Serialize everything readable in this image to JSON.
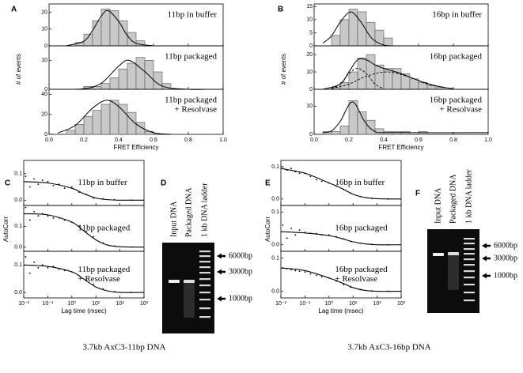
{
  "chart_data": [
    {
      "type": "histogram",
      "label": "A",
      "x_label": "FRET Efficiency",
      "y_label": "# of events",
      "xlim": [
        0,
        1
      ],
      "xticks": [
        {
          "value": 0,
          "label": "0.0"
        },
        0.2,
        0.4,
        0.6,
        0.8,
        {
          "value": 1,
          "label": "1.0"
        }
      ],
      "subplots": [
        {
          "text": [
            "11bp in buffer"
          ],
          "ylim": [
            0,
            25
          ],
          "yticks": [
            0,
            10,
            20
          ],
          "bins": [
            0.15,
            0.2,
            0.25,
            0.3,
            0.35,
            0.4,
            0.45,
            0.5,
            0.55
          ],
          "counts": [
            2,
            7,
            15,
            22,
            21,
            15,
            8,
            3
          ],
          "fits": [
            {
              "x": [
                0.1,
                0.2,
                0.25,
                0.3,
                0.34,
                0.4,
                0.45,
                0.5,
                0.6
              ],
              "y": [
                0.06,
                2.8,
                9.2,
                17.8,
                21,
                14.6,
                6.1,
                1.5,
                0
              ]
            }
          ]
        },
        {
          "text": [
            "11bp packaged"
          ],
          "ylim": [
            0,
            15
          ],
          "yticks": [
            0,
            10
          ],
          "bins": [
            0.2,
            0.25,
            0.3,
            0.35,
            0.4,
            0.45,
            0.5,
            0.55,
            0.6,
            0.65,
            0.7
          ],
          "counts": [
            1,
            1,
            2,
            4,
            7,
            9,
            11,
            10,
            6,
            2
          ],
          "fits": [
            {
              "x": [
                0.05,
                0.2,
                0.3,
                0.4,
                0.46,
                0.55,
                0.65,
                0.8,
                0.9
              ],
              "y": [
                0,
                0.2,
                2.1,
                8,
                10,
                6.1,
                1.1,
                0,
                0
              ]
            }
          ]
        },
        {
          "text": [
            "11bp packaged",
            "+ Resolvase"
          ],
          "ylim": [
            0,
            45
          ],
          "yticks": [
            0,
            20,
            40
          ],
          "bins": [
            0.1,
            0.15,
            0.2,
            0.25,
            0.3,
            0.35,
            0.4,
            0.45,
            0.5,
            0.55,
            0.6
          ],
          "counts": [
            4,
            10,
            18,
            24,
            30,
            34,
            30,
            22,
            12,
            3
          ],
          "fits": [
            {
              "x": [
                0.05,
                0.15,
                0.25,
                0.33,
                0.4,
                0.5,
                0.6,
                0.7
              ],
              "y": [
                1.3,
                8.9,
                26.2,
                34,
                27.8,
                10.3,
                1.7,
                0.1
              ]
            }
          ]
        }
      ]
    },
    {
      "type": "histogram",
      "label": "B",
      "x_label": "FRET Efficiency",
      "y_label": "# of events",
      "xlim": [
        0,
        1
      ],
      "xticks": [
        {
          "value": 0,
          "label": "0.0"
        },
        0.2,
        0.4,
        0.6,
        0.8,
        {
          "value": 1,
          "label": "1.0"
        }
      ],
      "subplots": [
        {
          "text": [
            "16bp in buffer"
          ],
          "ylim": [
            0,
            16
          ],
          "yticks": [
            0,
            5,
            10,
            15
          ],
          "bins": [
            0.1,
            0.15,
            0.2,
            0.25,
            0.3,
            0.35,
            0.4,
            0.45
          ],
          "counts": [
            4,
            10,
            14,
            13,
            9,
            6,
            3
          ],
          "fits": [
            {
              "x": [
                0.05,
                0.1,
                0.15,
                0.21,
                0.27,
                0.33,
                0.4,
                0.5
              ],
              "y": [
                1,
                3.8,
                9,
                13,
                9,
                3,
                0.3,
                0
              ]
            }
          ]
        },
        {
          "text": [
            "16bp packaged"
          ],
          "ylim": [
            0,
            25
          ],
          "yticks": [
            0,
            10,
            20
          ],
          "bins": [
            0.1,
            0.15,
            0.2,
            0.25,
            0.3,
            0.35,
            0.4,
            0.45,
            0.5,
            0.55,
            0.6,
            0.65,
            0.7,
            0.75
          ],
          "counts": [
            1,
            4,
            10,
            18,
            20,
            14,
            12,
            12,
            9,
            6,
            4,
            2,
            1
          ],
          "fits": [
            {
              "x": [
                0.05,
                0.15,
                0.2,
                0.25,
                0.3,
                0.35,
                0.4,
                0.5,
                0.6,
                0.7,
                0.8
              ],
              "y": [
                0,
                3,
                10,
                17,
                17,
                14,
                12,
                9,
                5,
                2,
                0.3
              ]
            },
            {
              "x": [
                0.1,
                0.15,
                0.2,
                0.25,
                0.3,
                0.35,
                0.4
              ],
              "y": [
                0.3,
                3,
                9,
                12,
                9,
                3,
                0.3
              ],
              "dashed": true
            },
            {
              "x": [
                0.1,
                0.2,
                0.3,
                0.42,
                0.55,
                0.65,
                0.75
              ],
              "y": [
                0.5,
                3,
                7.5,
                10,
                7,
                3,
                1
              ],
              "dashed": true
            }
          ]
        },
        {
          "text": [
            "16bp packaged",
            "+ Resolvase"
          ],
          "ylim": [
            0,
            16
          ],
          "yticks": [
            0,
            10
          ],
          "bins": [
            0.05,
            0.1,
            0.15,
            0.2,
            0.25,
            0.3,
            0.35,
            0.4,
            0.45,
            0.5,
            0.55,
            0.6,
            0.65,
            0.7
          ],
          "counts": [
            1,
            1,
            3,
            12,
            8,
            5,
            2,
            1,
            1,
            1,
            0,
            1,
            0
          ],
          "fits": [
            {
              "x": [
                0.05,
                0.1,
                0.15,
                0.22,
                0.29,
                0.35,
                0.45,
                1
              ],
              "y": [
                0.6,
                1.2,
                4.6,
                11.5,
                4.6,
                1,
                0.6,
                0.6
              ]
            }
          ]
        }
      ]
    },
    {
      "type": "scatter",
      "label": "C",
      "x_label": "Lag time (msec)",
      "y_label": "AutoCorr",
      "log_x": true,
      "xlim": [
        0.01,
        1000
      ],
      "xticks": [
        {
          "value": 0.01,
          "label": "10⁻²"
        },
        {
          "value": 0.1,
          "label": "10⁻¹"
        },
        {
          "value": 1,
          "label": "10⁰"
        },
        {
          "value": 10,
          "label": "10¹"
        },
        {
          "value": 100,
          "label": "10²"
        },
        {
          "value": 1000,
          "label": "10³"
        }
      ],
      "scatter_x": [
        0.012,
        0.018,
        0.027,
        0.04,
        0.06,
        0.1,
        0.17,
        0.3,
        0.5,
        1,
        2,
        4,
        8,
        20,
        60,
        300
      ],
      "fit_x": [
        0.01,
        0.1,
        1,
        3,
        10,
        30,
        100,
        1000
      ],
      "subplots": [
        {
          "text": [
            "11bp in buffer"
          ],
          "ylim": [
            -0.02,
            0.15
          ],
          "yticks": [
            {
              "value": 0,
              "label": "0.0"
            },
            0.1
          ],
          "scatter_y": [
            0.09,
            0.05,
            0.08,
            0.06,
            0.075,
            0.07,
            0.055,
            0.06,
            0.045,
            0.05,
            0.03,
            0.022,
            0.008,
            0.005,
            0.002,
            0
          ],
          "fit_y": [
            0.07,
            0.065,
            0.045,
            0.025,
            0.008,
            0.002,
            0,
            0
          ]
        },
        {
          "text": [
            "11bp packaged"
          ],
          "ylim": [
            -0.02,
            0.2
          ],
          "yticks": [
            {
              "value": 0,
              "label": "0.0"
            },
            0.1
          ],
          "scatter_y": [
            0.19,
            0.13,
            0.17,
            0.15,
            0.16,
            0.15,
            0.14,
            0.14,
            0.13,
            0.12,
            0.1,
            0.075,
            0.05,
            0.02,
            0.005,
            0
          ],
          "fit_y": [
            0.16,
            0.155,
            0.12,
            0.08,
            0.035,
            0.01,
            0.002,
            0
          ]
        },
        {
          "text": [
            "11bp packaged",
            "+ Resolvase"
          ],
          "ylim": [
            -0.02,
            0.15
          ],
          "yticks": [
            {
              "value": 0,
              "label": "0.0"
            },
            0.1
          ],
          "scatter_y": [
            0.13,
            0.07,
            0.11,
            0.09,
            0.1,
            0.09,
            0.095,
            0.085,
            0.08,
            0.075,
            0.06,
            0.045,
            0.03,
            0.012,
            0.003,
            0
          ],
          "fit_y": [
            0.1,
            0.095,
            0.075,
            0.05,
            0.02,
            0.006,
            0,
            0
          ]
        }
      ]
    },
    {
      "type": "scatter",
      "label": "E",
      "x_label": "Lag time (msec)",
      "y_label": "AutoCorr",
      "log_x": true,
      "xlim": [
        0.01,
        1000
      ],
      "xticks": [
        {
          "value": 0.01,
          "label": "10⁻²"
        },
        {
          "value": 0.1,
          "label": "10⁻¹"
        },
        {
          "value": 1,
          "label": "10⁰"
        },
        {
          "value": 10,
          "label": "10¹"
        },
        {
          "value": 100,
          "label": "10²"
        },
        {
          "value": 1000,
          "label": "10³"
        }
      ],
      "scatter_x": [
        0.012,
        0.018,
        0.027,
        0.04,
        0.06,
        0.1,
        0.17,
        0.3,
        0.5,
        1,
        2,
        4,
        8,
        20,
        60,
        300
      ],
      "fit_x": [
        0.01,
        0.1,
        1,
        3,
        10,
        30,
        100,
        1000
      ],
      "subplots": [
        {
          "text": [
            "16bp in buffer"
          ],
          "ylim": [
            -0.02,
            0.12
          ],
          "yticks": [
            {
              "value": 0,
              "label": "0.0"
            },
            0.1
          ],
          "scatter_y": [
            0.1,
            0.09,
            0.095,
            0.085,
            0.08,
            0.08,
            0.07,
            0.06,
            0.055,
            0.05,
            0.04,
            0.03,
            0.018,
            0.008,
            0.002,
            0
          ],
          "fit_y": [
            0.095,
            0.08,
            0.05,
            0.035,
            0.015,
            0.005,
            0.001,
            0
          ]
        },
        {
          "text": [
            "16bp packaged"
          ],
          "ylim": [
            -0.02,
            0.12
          ],
          "yticks": [
            {
              "value": 0,
              "label": "0.0"
            },
            0.1
          ],
          "scatter_y": [
            0.06,
            0.02,
            0.05,
            0.03,
            0.045,
            0.038,
            0.035,
            0.034,
            0.03,
            0.03,
            0.025,
            0.018,
            0.01,
            0.005,
            0.001,
            0
          ],
          "fit_y": [
            0.04,
            0.036,
            0.028,
            0.02,
            0.009,
            0.003,
            0,
            0
          ]
        },
        {
          "text": [
            "16bp packaged",
            "+ Resolvase"
          ],
          "ylim": [
            -0.02,
            0.12
          ],
          "yticks": [
            {
              "value": 0,
              "label": "0.0"
            },
            0.1
          ],
          "scatter_y": [
            0.07,
            0.068,
            0.065,
            0.062,
            0.06,
            0.058,
            0.052,
            0.048,
            0.043,
            0.04,
            0.03,
            0.02,
            0.012,
            0.005,
            0.001,
            0
          ],
          "fit_y": [
            0.07,
            0.062,
            0.04,
            0.027,
            0.011,
            0.003,
            0,
            0
          ]
        }
      ]
    }
  ],
  "gels": [
    {
      "label": "D",
      "lanes": [
        "Input DNA",
        "Packaged DNA",
        "1 kb DNA ladder"
      ],
      "markers": [
        "6000bp",
        "3000bp",
        "1000bp"
      ]
    },
    {
      "label": "F",
      "lanes": [
        "Input DNA",
        "Packaged DNA",
        "1 kb DNA ladder"
      ],
      "markers": [
        "6000bp",
        "3000bp",
        "1000bp"
      ]
    }
  ],
  "captions": [
    "3.7kb  AxC3-11bp DNA",
    "3.7kb  AxC3-16bp DNA"
  ]
}
